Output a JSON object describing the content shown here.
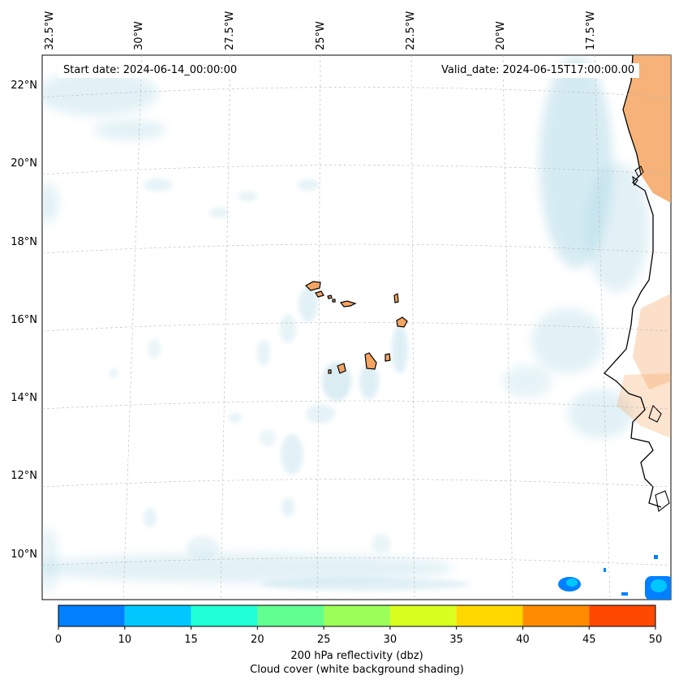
{
  "map": {
    "start_date": "Start date: 2024-06-14_00:00:00",
    "valid_date": "Valid_date: 2024-06-15T17:00:00.00",
    "longitude_labels": [
      "32.5°W",
      "30°W",
      "27.5°W",
      "25°W",
      "22.5°W",
      "20°W",
      "17.5°W"
    ],
    "latitude_labels": [
      "22°N",
      "20°N",
      "18°N",
      "16°N",
      "14°N",
      "12°N",
      "10°N"
    ],
    "graticule": "dashed light gray",
    "cloud_cover_color": "#add8e6",
    "land_shading_color": "#f4a460",
    "coastline_color": "#000000"
  },
  "colorbar": {
    "ticks": [
      "0",
      "10",
      "15",
      "20",
      "25",
      "30",
      "35",
      "40",
      "45",
      "50"
    ],
    "colors": [
      "#0080ff",
      "#00c8ff",
      "#20ffd8",
      "#60ff90",
      "#9cff5a",
      "#d8ff20",
      "#ffd800",
      "#ff8c00",
      "#ff4800"
    ],
    "label_line1": "200 hPa reflectivity (dbz)",
    "label_line2": "Cloud cover (white background shading)"
  }
}
